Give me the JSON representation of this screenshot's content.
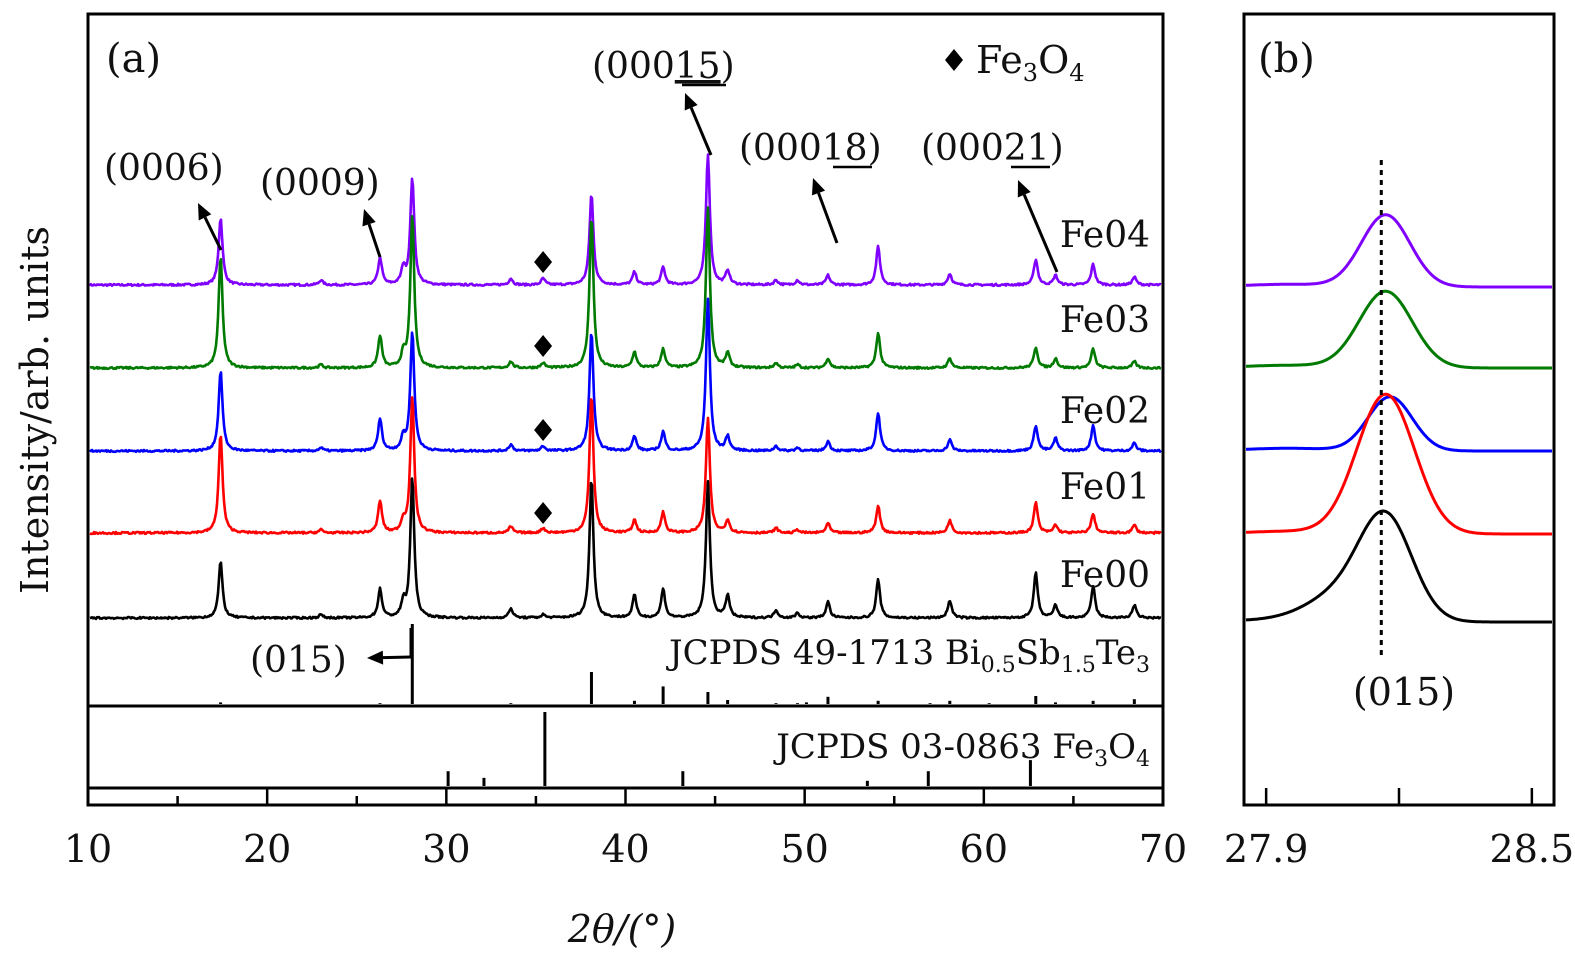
{
  "chart_data": [
    {
      "panel": "(a)",
      "type": "line",
      "title": "",
      "xlabel": "2θ/(°)",
      "ylabel": "Intensity/arb. units",
      "xlim": [
        10,
        70
      ],
      "xticks": [
        10,
        20,
        30,
        40,
        50,
        60,
        70
      ],
      "xtick_labels": [
        "10",
        "20",
        "30",
        "40",
        "50",
        "60",
        "70"
      ],
      "grid": false,
      "legend": {
        "placement": "top-right",
        "marker": "diamond",
        "label_main": "Fe",
        "label_sub1": "3",
        "label_mid": "O",
        "label_sub2": "4"
      },
      "series": [
        {
          "name": "Fe04",
          "color": "#8000ff",
          "offset": 4,
          "peaks": [
            [
              17.4,
              0.42
            ],
            [
              23.0,
              0.03
            ],
            [
              26.3,
              0.17
            ],
            [
              27.6,
              0.1
            ],
            [
              28.1,
              0.67
            ],
            [
              33.6,
              0.04
            ],
            [
              35.4,
              0.04
            ],
            [
              38.1,
              0.57
            ],
            [
              40.5,
              0.08
            ],
            [
              42.1,
              0.11
            ],
            [
              44.6,
              0.82
            ],
            [
              45.7,
              0.09
            ],
            [
              48.4,
              0.03
            ],
            [
              49.6,
              0.03
            ],
            [
              51.3,
              0.06
            ],
            [
              54.1,
              0.24
            ],
            [
              58.1,
              0.07
            ],
            [
              62.9,
              0.16
            ],
            [
              64.0,
              0.06
            ],
            [
              66.1,
              0.13
            ],
            [
              68.4,
              0.05
            ]
          ]
        },
        {
          "name": "Fe03",
          "color": "#007a00",
          "offset": 3,
          "peaks": [
            [
              17.4,
              0.7
            ],
            [
              23.0,
              0.02
            ],
            [
              26.3,
              0.2
            ],
            [
              27.6,
              0.08
            ],
            [
              28.1,
              0.95
            ],
            [
              33.6,
              0.04
            ],
            [
              35.4,
              0.03
            ],
            [
              38.1,
              0.95
            ],
            [
              40.5,
              0.1
            ],
            [
              42.1,
              0.12
            ],
            [
              44.6,
              1.0
            ],
            [
              45.7,
              0.09
            ],
            [
              48.4,
              0.03
            ],
            [
              49.6,
              0.02
            ],
            [
              51.3,
              0.06
            ],
            [
              54.1,
              0.22
            ],
            [
              58.1,
              0.06
            ],
            [
              62.9,
              0.13
            ],
            [
              64.0,
              0.06
            ],
            [
              66.1,
              0.12
            ],
            [
              68.4,
              0.04
            ]
          ]
        },
        {
          "name": "Fe02",
          "color": "#0000ff",
          "offset": 2,
          "peaks": [
            [
              17.4,
              0.5
            ],
            [
              23.0,
              0.02
            ],
            [
              26.3,
              0.2
            ],
            [
              27.6,
              0.08
            ],
            [
              28.1,
              0.75
            ],
            [
              33.6,
              0.04
            ],
            [
              35.4,
              0.03
            ],
            [
              38.1,
              0.75
            ],
            [
              40.5,
              0.09
            ],
            [
              42.1,
              0.12
            ],
            [
              44.6,
              0.95
            ],
            [
              45.7,
              0.09
            ],
            [
              48.4,
              0.03
            ],
            [
              49.6,
              0.02
            ],
            [
              51.3,
              0.06
            ],
            [
              54.1,
              0.24
            ],
            [
              58.1,
              0.07
            ],
            [
              62.9,
              0.16
            ],
            [
              64.0,
              0.08
            ],
            [
              66.1,
              0.16
            ],
            [
              68.4,
              0.05
            ]
          ]
        },
        {
          "name": "Fe01",
          "color": "#ff0000",
          "offset": 1,
          "peaks": [
            [
              17.4,
              0.62
            ],
            [
              23.0,
              0.02
            ],
            [
              26.3,
              0.2
            ],
            [
              27.6,
              0.07
            ],
            [
              28.1,
              0.85
            ],
            [
              33.6,
              0.04
            ],
            [
              35.4,
              0.03
            ],
            [
              38.1,
              0.87
            ],
            [
              40.5,
              0.08
            ],
            [
              42.1,
              0.13
            ],
            [
              44.6,
              0.72
            ],
            [
              45.7,
              0.08
            ],
            [
              48.4,
              0.03
            ],
            [
              49.6,
              0.02
            ],
            [
              51.3,
              0.06
            ],
            [
              54.1,
              0.17
            ],
            [
              58.1,
              0.08
            ],
            [
              62.9,
              0.19
            ],
            [
              64.0,
              0.05
            ],
            [
              66.1,
              0.12
            ],
            [
              68.4,
              0.05
            ]
          ]
        },
        {
          "name": "Fe00",
          "color": "#000000",
          "offset": 0,
          "peaks": [
            [
              17.4,
              0.35
            ],
            [
              23.0,
              0.02
            ],
            [
              26.3,
              0.18
            ],
            [
              27.6,
              0.09
            ],
            [
              28.1,
              0.88
            ],
            [
              33.6,
              0.06
            ],
            [
              35.4,
              0.02
            ],
            [
              38.1,
              0.87
            ],
            [
              40.5,
              0.14
            ],
            [
              42.1,
              0.18
            ],
            [
              44.6,
              0.85
            ],
            [
              45.7,
              0.14
            ],
            [
              48.4,
              0.05
            ],
            [
              49.6,
              0.03
            ],
            [
              51.3,
              0.1
            ],
            [
              54.1,
              0.24
            ],
            [
              58.1,
              0.11
            ],
            [
              62.9,
              0.28
            ],
            [
              64.0,
              0.08
            ],
            [
              66.1,
              0.2
            ],
            [
              68.4,
              0.08
            ]
          ]
        }
      ],
      "annotations": [
        {
          "text": "(0006)",
          "x": 17.4,
          "series": "Fe04"
        },
        {
          "text": "(0009)",
          "x": 26.3,
          "series": "Fe04"
        },
        {
          "text_prefix": "(000",
          "text_underlined": "15",
          "text_suffix": ")",
          "x": 44.6,
          "series": "Fe04"
        },
        {
          "text_prefix": "(000",
          "text_underlined": "18",
          "text_suffix": ")",
          "x": 54.1,
          "series": "Fe04"
        },
        {
          "text_prefix": "(000",
          "text_underlined": "21",
          "text_suffix": ")",
          "x": 64.0,
          "series": "Fe04"
        },
        {
          "text": "(015)",
          "x": 28.1,
          "series": "reference-1"
        }
      ],
      "fe3o4_markers": {
        "x": 35.4,
        "series": [
          "Fe04",
          "Fe03",
          "Fe02",
          "Fe01"
        ]
      },
      "references": [
        {
          "name": "JCPDS 49-1713 Bi0.5Sb1.5Te3",
          "label_prefix": "JCPDS 49-1713 Bi",
          "label_sub1": "0.5",
          "label_mid1": "Sb",
          "label_sub2": "1.5",
          "label_mid2": "Te",
          "label_sub3": "3",
          "lines": [
            [
              17.4,
              0.02
            ],
            [
              26.3,
              0.01
            ],
            [
              28.1,
              1.0
            ],
            [
              33.6,
              0.01
            ],
            [
              38.1,
              0.4
            ],
            [
              40.5,
              0.04
            ],
            [
              42.1,
              0.22
            ],
            [
              44.6,
              0.15
            ],
            [
              45.7,
              0.05
            ],
            [
              48.4,
              0.01
            ],
            [
              49.6,
              0.01
            ],
            [
              50.1,
              0.02
            ],
            [
              51.3,
              0.09
            ],
            [
              54.1,
              0.04
            ],
            [
              57.0,
              0.01
            ],
            [
              58.1,
              0.04
            ],
            [
              60.3,
              0.01
            ],
            [
              62.9,
              0.1
            ],
            [
              64.0,
              0.02
            ],
            [
              66.1,
              0.04
            ],
            [
              68.4,
              0.06
            ]
          ]
        },
        {
          "name": "JCPDS 03-0863 Fe3O4",
          "label_prefix": "JCPDS 03-0863 Fe",
          "label_sub1": "3",
          "label_mid1": "O",
          "label_sub2": "4",
          "lines": [
            [
              30.1,
              0.2
            ],
            [
              32.1,
              0.11
            ],
            [
              35.5,
              1.0
            ],
            [
              43.2,
              0.2
            ],
            [
              53.5,
              0.07
            ],
            [
              56.9,
              0.2
            ],
            [
              62.6,
              0.35
            ]
          ]
        }
      ]
    },
    {
      "panel": "(b)",
      "type": "line",
      "xlim": [
        27.85,
        28.55
      ],
      "xticks": [
        27.9,
        28.2,
        28.5
      ],
      "xtick_labels": [
        "27.9",
        "",
        "28.5"
      ],
      "grid": false,
      "reference_line": {
        "x": 28.16,
        "style": "dotted",
        "label": "(015)"
      },
      "series": [
        {
          "name": "Fe04",
          "color": "#8000ff",
          "center": 28.17,
          "width": 0.055,
          "height": 0.8,
          "offset": 4,
          "shoulder": 0.0
        },
        {
          "name": "Fe03",
          "color": "#007a00",
          "center": 28.17,
          "width": 0.06,
          "height": 0.85,
          "offset": 3,
          "shoulder": 0.0
        },
        {
          "name": "Fe02",
          "color": "#0000ff",
          "center": 28.18,
          "width": 0.05,
          "height": 0.6,
          "offset": 2,
          "shoulder": 0.0
        },
        {
          "name": "Fe01",
          "color": "#ff0000",
          "center": 28.17,
          "width": 0.065,
          "height": 1.55,
          "offset": 1,
          "shoulder": 0.0
        },
        {
          "name": "Fe00",
          "color": "#000000",
          "center": 28.17,
          "width": 0.06,
          "height": 1.15,
          "offset": 0,
          "shoulder": 0.45
        }
      ]
    }
  ]
}
